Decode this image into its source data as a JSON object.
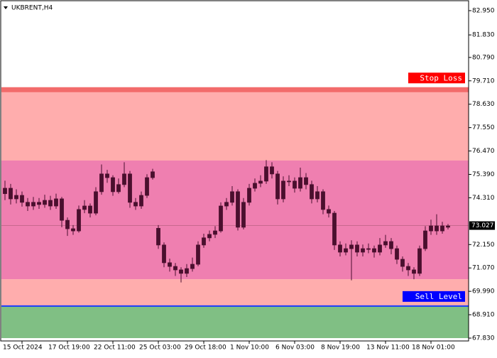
{
  "chart_data": {
    "type": "candlestick",
    "title": "UKBRENT,H4",
    "categories": [
      null,
      null,
      null,
      "15 Oct 2024",
      null,
      null,
      null,
      null,
      null,
      null,
      null,
      "17 Oct 19:00",
      null,
      null,
      null,
      null,
      null,
      null,
      null,
      "22 Oct 11:00",
      null,
      null,
      null,
      null,
      null,
      null,
      null,
      "25 Oct 03:00",
      null,
      null,
      null,
      null,
      null,
      null,
      null,
      "29 Oct 18:00",
      null,
      null,
      null,
      null,
      null,
      null,
      null,
      "1 Nov 10:00",
      null,
      null,
      null,
      null,
      null,
      null,
      null,
      "6 Nov 03:00",
      null,
      null,
      null,
      null,
      null,
      null,
      null,
      "8 Nov 19:00",
      null,
      null,
      null,
      null,
      null,
      null,
      null,
      "13 Nov 11:00",
      null,
      null,
      null,
      null,
      null,
      null,
      null,
      "18 Nov 01:00",
      null,
      null,
      null
    ],
    "open": [
      74.5,
      74.75,
      74.26,
      74.42,
      74.1,
      73.93,
      74.1,
      74.0,
      74.19,
      73.93,
      74.26,
      73.27,
      72.88,
      72.78,
      73.77,
      73.93,
      73.6,
      74.59,
      75.41,
      75.24,
      74.59,
      74.92,
      75.41,
      74.1,
      73.93,
      74.42,
      75.24,
      72.9,
      72.13,
      71.31,
      71.14,
      70.98,
      70.82,
      71.04,
      71.24,
      72.13,
      72.46,
      72.62,
      72.78,
      73.93,
      74.1,
      74.59,
      72.95,
      74.1,
      74.75,
      74.98,
      75.08,
      75.74,
      75.41,
      74.26,
      75.08,
      75.08,
      74.75,
      75.24,
      74.92,
      74.26,
      74.59,
      73.77,
      73.6,
      72.13,
      71.8,
      71.96,
      72.13,
      71.8,
      71.96,
      71.96,
      71.8,
      72.13,
      72.29,
      71.96,
      71.47,
      71.14,
      70.98,
      70.82,
      71.96,
      72.78,
      73.01,
      72.78,
      73.01
    ],
    "high": [
      75.1,
      74.95,
      74.7,
      74.6,
      74.3,
      74.35,
      74.3,
      74.45,
      74.4,
      74.5,
      74.35,
      73.4,
      73.05,
      73.95,
      74.2,
      74.05,
      74.8,
      75.85,
      75.6,
      75.35,
      75.2,
      75.95,
      75.55,
      74.3,
      74.6,
      75.4,
      75.65,
      73.05,
      72.25,
      71.5,
      71.3,
      71.1,
      71.25,
      71.55,
      72.3,
      72.65,
      72.8,
      73.0,
      74.1,
      74.3,
      74.85,
      74.7,
      74.3,
      74.95,
      75.2,
      75.35,
      76.05,
      75.95,
      75.55,
      75.3,
      75.35,
      75.25,
      75.7,
      75.45,
      75.1,
      74.85,
      74.7,
      73.95,
      73.7,
      72.3,
      72.2,
      72.35,
      72.3,
      72.15,
      72.2,
      72.1,
      72.45,
      72.6,
      72.45,
      72.1,
      71.6,
      71.3,
      71.1,
      72.1,
      73.0,
      73.3,
      73.55,
      73.2,
      73.1
    ],
    "low": [
      74.2,
      74.0,
      74.05,
      73.9,
      73.7,
      73.75,
      73.8,
      73.85,
      73.75,
      73.8,
      72.95,
      72.55,
      72.6,
      72.7,
      73.6,
      73.4,
      73.5,
      74.45,
      75.0,
      74.4,
      74.5,
      74.8,
      73.85,
      73.75,
      73.8,
      74.3,
      75.15,
      71.95,
      71.1,
      70.9,
      70.7,
      70.4,
      70.65,
      70.9,
      71.15,
      72.0,
      72.3,
      72.45,
      72.7,
      73.75,
      73.95,
      72.8,
      72.85,
      73.95,
      74.6,
      74.8,
      74.95,
      75.2,
      74.0,
      74.1,
      74.85,
      74.55,
      74.6,
      74.7,
      74.05,
      74.1,
      73.55,
      73.4,
      71.9,
      71.6,
      71.65,
      70.5,
      71.6,
      71.6,
      71.75,
      71.55,
      71.65,
      72.0,
      71.7,
      71.25,
      70.9,
      70.7,
      70.55,
      70.7,
      71.85,
      72.6,
      72.6,
      72.65,
      72.85
    ],
    "close": [
      74.75,
      74.26,
      74.42,
      74.1,
      73.93,
      74.1,
      74.0,
      74.19,
      73.93,
      74.26,
      73.27,
      72.88,
      72.78,
      73.77,
      73.93,
      73.6,
      74.59,
      75.41,
      75.24,
      74.59,
      74.92,
      75.41,
      74.1,
      73.93,
      74.42,
      75.24,
      75.51,
      72.13,
      71.31,
      71.14,
      70.98,
      70.82,
      71.04,
      71.24,
      72.13,
      72.46,
      72.62,
      72.78,
      73.93,
      74.1,
      74.59,
      72.95,
      74.1,
      74.75,
      74.98,
      75.08,
      75.74,
      75.41,
      74.26,
      75.08,
      75.08,
      74.75,
      75.24,
      74.92,
      74.26,
      74.59,
      73.77,
      73.6,
      72.13,
      71.8,
      71.96,
      72.13,
      71.8,
      71.96,
      71.96,
      71.8,
      72.13,
      72.29,
      71.96,
      71.47,
      71.14,
      70.98,
      70.82,
      71.96,
      72.78,
      73.01,
      72.78,
      73.01,
      72.95
    ],
    "candle_color": "#4a0f2e",
    "ylim": [
      67.83,
      82.95
    ],
    "yticks": [
      {
        "value": 82.95,
        "label": "82.950"
      },
      {
        "value": 81.83,
        "label": "81.830"
      },
      {
        "value": 80.79,
        "label": "80.790"
      },
      {
        "value": 79.71,
        "label": "79.710"
      },
      {
        "value": 78.63,
        "label": "78.630"
      },
      {
        "value": 77.55,
        "label": "77.550"
      },
      {
        "value": 76.47,
        "label": "76.470"
      },
      {
        "value": 75.39,
        "label": "75.390"
      },
      {
        "value": 74.31,
        "label": "74.310"
      },
      {
        "value": 72.15,
        "label": "72.150"
      },
      {
        "value": 71.07,
        "label": "71.070"
      },
      {
        "value": 69.99,
        "label": "69.990"
      },
      {
        "value": 68.91,
        "label": "68.910"
      },
      {
        "value": 67.83,
        "label": "67.830"
      }
    ],
    "zones": [
      {
        "from": 76.03,
        "to": 79.3,
        "color": "#ffadad"
      },
      {
        "from": 70.55,
        "to": 76.03,
        "color": "#ef7fb0"
      },
      {
        "from": 69.31,
        "to": 70.55,
        "color": "#ffadad"
      },
      {
        "from": 67.83,
        "to": 69.31,
        "color": "#80bf84"
      }
    ],
    "levels": [
      {
        "label": "Stop Loss",
        "value": 79.3,
        "color": "#ff0000",
        "line_color": "#f26b6b"
      },
      {
        "label": "Sell Level",
        "value": 69.31,
        "color": "#0000ff",
        "line_color": "#1a3cff"
      }
    ],
    "current_price": 73.027
  }
}
